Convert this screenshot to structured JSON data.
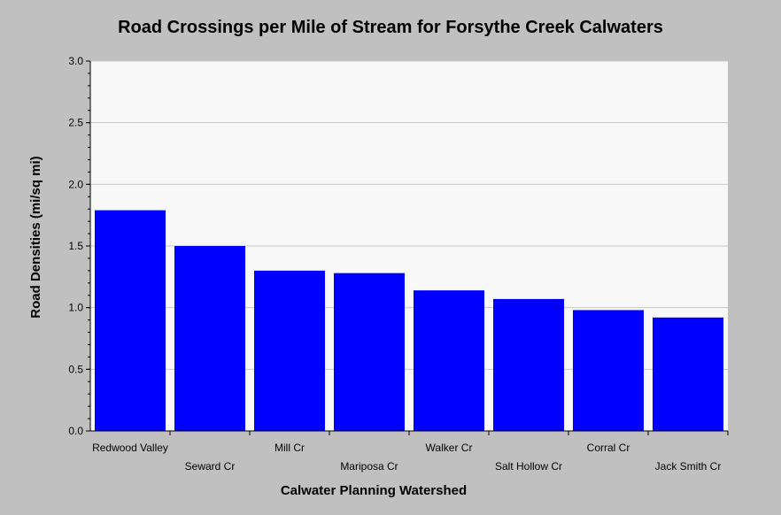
{
  "chart_data": {
    "type": "bar",
    "title": "Road Crossings per Mile of Stream for Forsythe Creek Calwaters",
    "xlabel": "Calwater Planning Watershed",
    "ylabel": "Road Densities (mi/sq mi)",
    "categories": [
      "Redwood Valley",
      "Seward Cr",
      "Mill Cr",
      "Mariposa Cr",
      "Walker Cr",
      "Salt Hollow Cr",
      "Corral Cr",
      "Jack Smith Cr"
    ],
    "values": [
      1.79,
      1.5,
      1.3,
      1.28,
      1.14,
      1.07,
      0.98,
      0.92
    ],
    "ylim": [
      0,
      3.0
    ],
    "yticks": [
      "0.0",
      "0.5",
      "1.0",
      "1.5",
      "2.0",
      "2.5",
      "3.0"
    ],
    "grid": true,
    "colors": {
      "bar": "#0000ff",
      "plot_bg": "#f8f8f8",
      "grid": "#c8c8c8",
      "page_bg": "#c0c0c0"
    }
  }
}
